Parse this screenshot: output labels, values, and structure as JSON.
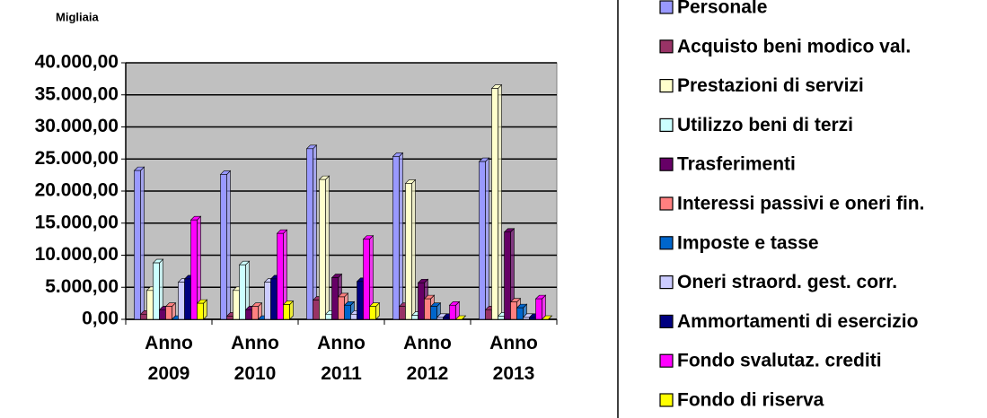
{
  "chart_data": {
    "type": "bar",
    "title": "Migliaia",
    "categories": [
      "Anno 2009",
      "Anno 2010",
      "Anno 2011",
      "Anno 2012",
      "Anno 2013"
    ],
    "ylim": [
      0,
      40000
    ],
    "yticks": [
      {
        "value": 0,
        "label": "0,00"
      },
      {
        "value": 5000,
        "label": "5.000,00"
      },
      {
        "value": 10000,
        "label": "10.000,00"
      },
      {
        "value": 15000,
        "label": "15.000,00"
      },
      {
        "value": 20000,
        "label": "20.000,00"
      },
      {
        "value": 25000,
        "label": "25.000,00"
      },
      {
        "value": 30000,
        "label": "30.000,00"
      },
      {
        "value": 35000,
        "label": "35.000,00"
      },
      {
        "value": 40000,
        "label": "40.000,00"
      }
    ],
    "grid": true,
    "legend": "right",
    "series": [
      {
        "name": "Personale",
        "color": "#9999ff",
        "values": [
          23200,
          22600,
          26600,
          25400,
          24600
        ]
      },
      {
        "name": "Acquisto beni modico val.",
        "color": "#993366",
        "values": [
          800,
          500,
          3000,
          2000,
          1500
        ]
      },
      {
        "name": "Prestazioni di servizi",
        "color": "#ffffcc",
        "values": [
          4500,
          4500,
          21800,
          21200,
          36000
        ]
      },
      {
        "name": "Utilizzo beni di terzi",
        "color": "#ccffff",
        "values": [
          8800,
          8500,
          800,
          600,
          500
        ]
      },
      {
        "name": "Trasferimenti",
        "color": "#660066",
        "values": [
          1500,
          1500,
          6500,
          5700,
          13600
        ]
      },
      {
        "name": "Interessi passivi e oneri fin.",
        "color": "#ff8080",
        "values": [
          2000,
          2000,
          3500,
          3200,
          2700
        ]
      },
      {
        "name": "Imposte e tasse",
        "color": "#0066cc",
        "values": [
          0,
          0,
          2200,
          2000,
          1800
        ]
      },
      {
        "name": "Oneri straord. gest. corr.",
        "color": "#ccccff",
        "values": [
          5800,
          5800,
          800,
          300,
          300
        ]
      },
      {
        "name": "Ammortamenti di esercizio",
        "color": "#000080",
        "values": [
          6300,
          6300,
          5900,
          300,
          300
        ]
      },
      {
        "name": "Fondo svalutaz. crediti",
        "color": "#ff00ff",
        "values": [
          15500,
          13400,
          12500,
          2200,
          3200
        ]
      },
      {
        "name": "Fondo di riserva",
        "color": "#ffff00",
        "values": [
          2500,
          2300,
          2000,
          0,
          0
        ]
      }
    ]
  }
}
